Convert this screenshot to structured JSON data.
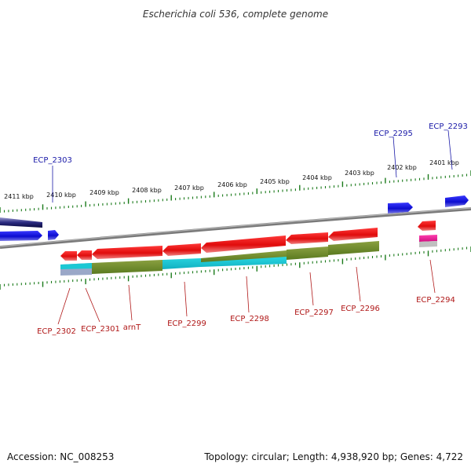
{
  "title": "Escherichia coli 536, complete genome",
  "scale_labels": [
    "2411 kbp",
    "2410 kbp",
    "2409 kbp",
    "2408 kbp",
    "2407 kbp",
    "2406 kbp",
    "2405 kbp",
    "2404 kbp",
    "2403 kbp",
    "2402 kbp",
    "2401 kbp"
  ],
  "genes_top": [
    {
      "label": "ECP_2303",
      "color": "#1a1aa8"
    },
    {
      "label": "ECP_2295",
      "color": "#1a1aa8"
    },
    {
      "label": "ECP_2293",
      "color": "#1a1aa8"
    }
  ],
  "genes_bottom": [
    {
      "label": "ECP_2302",
      "color": "#b01818"
    },
    {
      "label": "ECP_2301",
      "color": "#b01818"
    },
    {
      "label": "arnT",
      "color": "#b01818"
    },
    {
      "label": "ECP_2299",
      "color": "#b01818"
    },
    {
      "label": "ECP_2298",
      "color": "#b01818"
    },
    {
      "label": "ECP_2297",
      "color": "#b01818"
    },
    {
      "label": "ECP_2296",
      "color": "#b01818"
    },
    {
      "label": "ECP_2294",
      "color": "#b01818"
    }
  ],
  "footer": {
    "accession": "Accession: NC_008253",
    "summary": "Topology: circular; Length: 4,938,920 bp; Genes: 4,722"
  },
  "colors": {
    "plus_strand": "#1a1ad8",
    "minus_strand": "#e81818",
    "tick": "#1a7a1a",
    "domain_olive": "#6f8c2a",
    "domain_cyan": "#1cc8d4",
    "backbone": "#808080"
  }
}
